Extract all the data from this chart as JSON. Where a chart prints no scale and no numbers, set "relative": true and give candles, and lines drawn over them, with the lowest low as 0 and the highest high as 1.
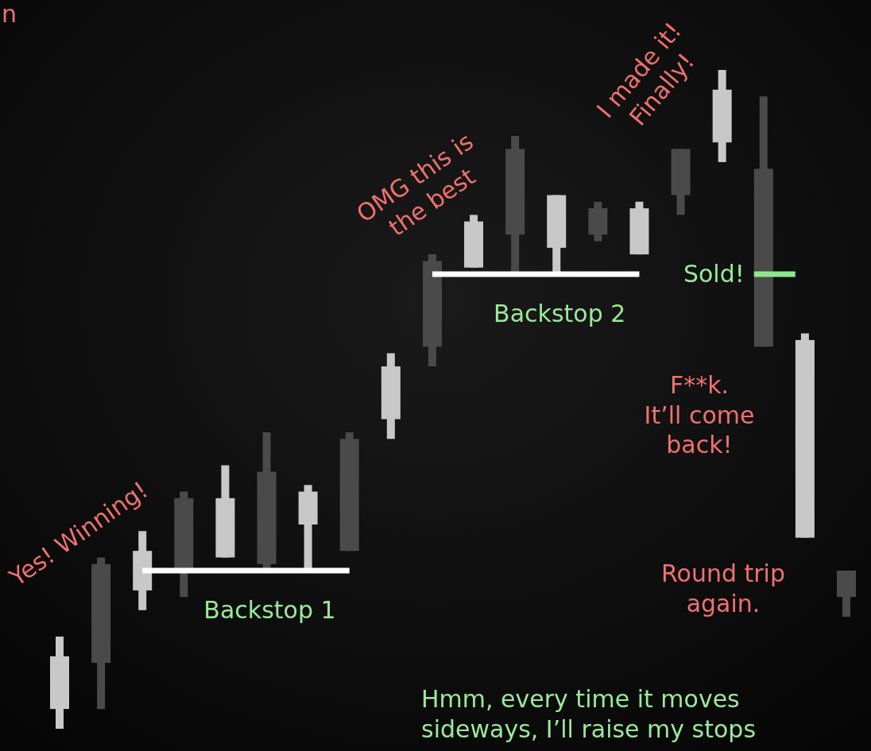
{
  "chart_data": {
    "type": "candlestick",
    "relative": true,
    "categories": [
      null,
      null,
      null,
      null,
      null,
      null,
      null,
      null,
      null,
      null,
      null,
      null,
      null,
      null,
      null,
      null,
      null,
      null,
      null,
      null
    ],
    "ohlc": [
      [
        0.03,
        0.14,
        0,
        0.11
      ],
      [
        0.25,
        0.26,
        0.03,
        0.1
      ],
      [
        0.21,
        0.3,
        0.18,
        0.27
      ],
      [
        0.35,
        0.36,
        0.2,
        0.24
      ],
      [
        0.26,
        0.4,
        0.26,
        0.35
      ],
      [
        0.39,
        0.45,
        0.24,
        0.25
      ],
      [
        0.31,
        0.37,
        0.24,
        0.36
      ],
      [
        0.44,
        0.45,
        0.27,
        0.27
      ],
      [
        0.47,
        0.57,
        0.44,
        0.55
      ],
      [
        0.71,
        0.72,
        0.55,
        0.58
      ],
      [
        0.7,
        0.78,
        0.7,
        0.77
      ],
      [
        0.88,
        0.9,
        0.69,
        0.75
      ],
      [
        0.73,
        0.81,
        0.69,
        0.81
      ],
      [
        0.79,
        0.8,
        0.74,
        0.75
      ],
      [
        0.72,
        0.8,
        0.72,
        0.79
      ],
      [
        0.88,
        0.88,
        0.78,
        0.81
      ],
      [
        0.89,
        1,
        0.86,
        0.97
      ],
      [
        0.85,
        0.96,
        0.58,
        0.58
      ],
      [
        0.29,
        0.6,
        0.29,
        0.59
      ],
      [
        0.24,
        0.24,
        0.17,
        0.2
      ]
    ],
    "colors": [
      "#c8c8c8",
      "#4a4a4a",
      "#c8c8c8",
      "#4a4a4a",
      "#c8c8c8",
      "#4a4a4a",
      "#c8c8c8",
      "#4a4a4a",
      "#c8c8c8",
      "#4a4a4a",
      "#c8c8c8",
      "#4a4a4a",
      "#c8c8c8",
      "#4a4a4a",
      "#c8c8c8",
      "#4a4a4a",
      "#c8c8c8",
      "#4a4a4a",
      "#c8c8c8",
      "#4a4a4a"
    ],
    "series": [
      {
        "type": "line",
        "name": "Backstop 1",
        "color": "#ffffff",
        "values": [
          null,
          null,
          0.24,
          0.24,
          0.24,
          0.24,
          0.24,
          0.24,
          null,
          null,
          null,
          null,
          null,
          null,
          null,
          null,
          null,
          null,
          null,
          null
        ]
      },
      {
        "type": "line",
        "name": "Backstop 2",
        "color": "#ffffff",
        "values": [
          null,
          null,
          null,
          null,
          null,
          null,
          null,
          null,
          null,
          0.69,
          0.69,
          0.69,
          0.69,
          0.69,
          0.69,
          null,
          null,
          null,
          null,
          null
        ]
      }
    ],
    "ref_lines": [
      {
        "axis": "y",
        "value": 0.69,
        "label": "Sold!",
        "color": "#8ee68e"
      }
    ],
    "annotations": [
      "n",
      "Yes! Winning!",
      "OMG this is\nthe best",
      "I made it!\nFinally!",
      "F**k.\nIt’ll come\nback!",
      "Round trip\nagain.",
      "Hmm, every time it moves\nsideways, I’ll raise my stops"
    ]
  }
}
